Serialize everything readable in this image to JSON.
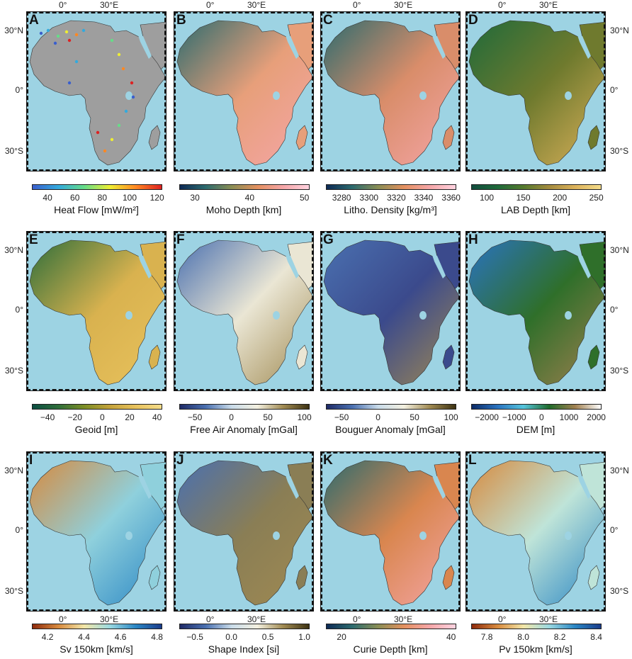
{
  "axis_labels": {
    "lon": [
      "0°",
      "30°E"
    ],
    "lat": [
      "30°N",
      "0°",
      "30°S"
    ]
  },
  "colors": {
    "ocean": "#9dd3e3",
    "land_grey": "#9e9e9e"
  },
  "panels": [
    {
      "letter": "A",
      "colorbar": {
        "label": "Heat Flow  [mW/m²]",
        "ticks": [
          "40",
          "60",
          "80",
          "100",
          "120"
        ],
        "gradient": [
          "#3a5fcd",
          "#33aadd",
          "#66dd88",
          "#eeee33",
          "#ff8822",
          "#dd2222"
        ]
      },
      "land": "#9e9e9e"
    },
    {
      "letter": "B",
      "colorbar": {
        "label": "Moho Depth  [km]",
        "ticks": [
          "30",
          "40",
          "50"
        ],
        "gradient": [
          "#0d2a55",
          "#2d6b6e",
          "#8a8e55",
          "#e3905f",
          "#f5a6a8",
          "#ffd3e0"
        ]
      },
      "land": "#e79f7a"
    },
    {
      "letter": "C",
      "colorbar": {
        "label": "Litho. Density  [kg/m³]",
        "ticks": [
          "3280",
          "3300",
          "3320",
          "3340",
          "3360"
        ],
        "gradient": [
          "#0d2a55",
          "#2d6b6e",
          "#8a8e55",
          "#e3905f",
          "#f5a6a8",
          "#ffd3e0"
        ]
      },
      "land": "#d98d6a"
    },
    {
      "letter": "D",
      "colorbar": {
        "label": "LAB Depth  [km]",
        "ticks": [
          "100",
          "150",
          "200",
          "250"
        ],
        "gradient": [
          "#124d3e",
          "#1f6a3a",
          "#557a2e",
          "#a48b3e",
          "#dcb25b",
          "#f4dc8a"
        ]
      },
      "land": "#6f7a2e"
    },
    {
      "letter": "E",
      "colorbar": {
        "label": "Geoid  [m]",
        "ticks": [
          "−40",
          "−20",
          "0",
          "20",
          "40"
        ],
        "gradient": [
          "#0c4e42",
          "#2e6e3a",
          "#7c8e26",
          "#c4a23a",
          "#e8c25d",
          "#f4dc8a"
        ]
      },
      "land": "#d9b24f"
    },
    {
      "letter": "F",
      "colorbar": {
        "label": "Free Air Anomaly  [mGal]",
        "ticks": [
          "−50",
          "0",
          "50",
          "100"
        ],
        "gradient": [
          "#1e2a66",
          "#4a70b0",
          "#c9dbe9",
          "#f3f0e0",
          "#a08a52",
          "#3d3212"
        ]
      },
      "land": "#eae6d4"
    },
    {
      "letter": "G",
      "colorbar": {
        "label": "Bouguer Anomaly  [mGal]",
        "ticks": [
          "−50",
          "0",
          "50",
          "100"
        ],
        "gradient": [
          "#1e2a66",
          "#4a70b0",
          "#c9dbe9",
          "#f3f0e0",
          "#a08a52",
          "#3d3212"
        ]
      },
      "land": "#3b4a8c"
    },
    {
      "letter": "H",
      "colorbar": {
        "label": "DEM  [m]",
        "ticks": [
          "−2000",
          "−1000",
          "0",
          "1000",
          "2000"
        ],
        "gradient": [
          "#0b2a66",
          "#2a73c0",
          "#55c4dc",
          "#1f6a2a",
          "#a08050",
          "#ffffff"
        ]
      },
      "land": "#2f6f2a"
    },
    {
      "letter": "I",
      "colorbar": {
        "label": "Sv 150km  [km/s]",
        "ticks": [
          "4.2",
          "4.4",
          "4.6",
          "4.8"
        ],
        "gradient": [
          "#8e2a0c",
          "#d78a3e",
          "#f2e6a8",
          "#9ad8e0",
          "#2a86c4",
          "#1a3c8a"
        ]
      },
      "land": "#8fd0dc"
    },
    {
      "letter": "J",
      "colorbar": {
        "label": "Shape Index  [si]",
        "ticks": [
          "−0.5",
          "0.0",
          "0.5",
          "1.0"
        ],
        "gradient": [
          "#1e2a66",
          "#4a70b0",
          "#c9dbe9",
          "#f3f0e0",
          "#a08a52",
          "#3d3212"
        ]
      },
      "land": "#8a7e55"
    },
    {
      "letter": "K",
      "colorbar": {
        "label": "Curie Depth  [km]",
        "ticks": [
          "20",
          "40"
        ],
        "gradient": [
          "#0d2a55",
          "#2d6b6e",
          "#8a8e55",
          "#e3905f",
          "#f5a6a8",
          "#ffd3e0"
        ]
      },
      "land": "#d9864f"
    },
    {
      "letter": "L",
      "colorbar": {
        "label": "Pv 150km  [km/s]",
        "ticks": [
          "7.8",
          "8.0",
          "8.2",
          "8.4"
        ],
        "gradient": [
          "#8e2a0c",
          "#d78a3e",
          "#f2e6a8",
          "#9ad8e0",
          "#2a86c4",
          "#1a3c8a"
        ]
      },
      "land": "#bfe4d8"
    }
  ]
}
